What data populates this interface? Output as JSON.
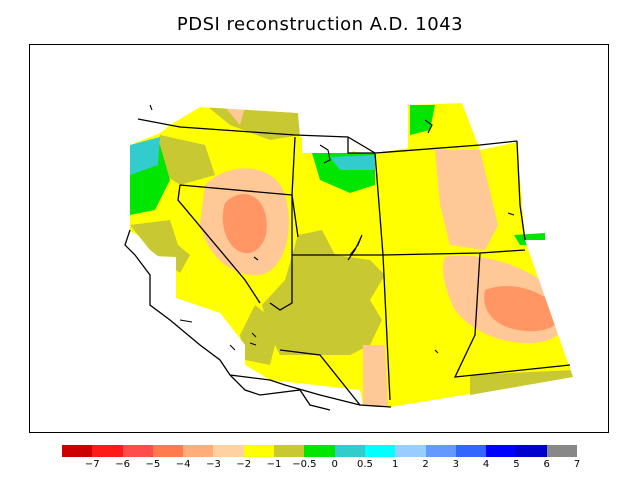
{
  "title": "PDSI reconstruction A.D. 1043",
  "legend": {
    "colors": [
      "#cc0000",
      "#ff1a1a",
      "#ff4d4d",
      "#ff7a4d",
      "#ffad7a",
      "#ffd1a3",
      "#ffff00",
      "#c8c832",
      "#00e600",
      "#33cccc",
      "#00ffff",
      "#99ccff",
      "#6699ff",
      "#3366ff",
      "#0000ff",
      "#0000cc",
      "#888888"
    ],
    "labels": [
      "−7",
      "−6",
      "−5",
      "−4",
      "−3",
      "−2",
      "−1",
      "−0.5",
      "0",
      "0.5",
      "1",
      "2",
      "3",
      "4",
      "5",
      "6",
      "7"
    ]
  },
  "map_fill_colors": {
    "background": "#ffff00",
    "olive": "#c8c832",
    "light_orange": "#ffc896",
    "salmon": "#ff9664",
    "green": "#00e600",
    "cyan": "#33cccc"
  }
}
